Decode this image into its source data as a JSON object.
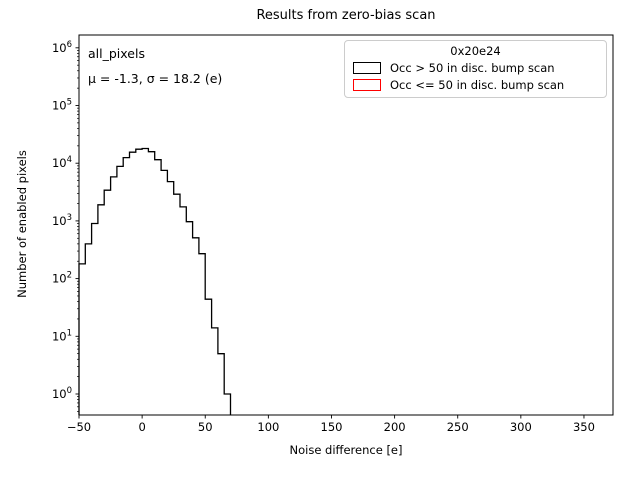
{
  "figure": {
    "title": "Results from zero-bias scan",
    "background_color": "#ffffff",
    "line_color": "#000000"
  },
  "axes": {
    "xlabel": "Noise difference [e]",
    "ylabel": "Number of enabled pixels",
    "x_ticks": [
      -50,
      0,
      50,
      100,
      150,
      200,
      250,
      300,
      350
    ],
    "x_tick_labels": [
      "−50",
      "0",
      "50",
      "100",
      "150",
      "200",
      "250",
      "300",
      "350"
    ],
    "y_tick_exponents": [
      0,
      1,
      2,
      3,
      4,
      5,
      6
    ],
    "y_tick_base": "10"
  },
  "annotation": {
    "line1": "all_pixels",
    "line2": "μ = -1.3, σ = 18.2 (e)"
  },
  "legend": {
    "title": "0x20e24",
    "entries": [
      {
        "label": "Occ > 50 in disc. bump scan",
        "color": "#000000"
      },
      {
        "label": "Occ <= 50 in disc. bump scan",
        "color": "#ff0000"
      }
    ]
  },
  "chart_data": {
    "type": "histogram-step",
    "title": "Results from zero-bias scan",
    "xlabel": "Noise difference [e]",
    "ylabel": "Number of enabled pixels",
    "yscale": "log",
    "xlim": [
      -50,
      373
    ],
    "ylim_exp": [
      -0.364,
      6.222
    ],
    "grid": false,
    "legend_position": "upper right",
    "stats": {
      "mu": -1.3,
      "sigma": 18.2,
      "unit": "e",
      "selection": "all_pixels"
    },
    "series": [
      {
        "name": "Occ > 50 in disc. bump scan",
        "color": "#000000",
        "bin_edges": [
          -50,
          -45,
          -40,
          -35,
          -30,
          -25,
          -20,
          -15,
          -10,
          -5,
          0,
          5,
          10,
          15,
          20,
          25,
          30,
          35,
          40,
          45,
          50,
          55,
          60,
          65,
          70
        ],
        "counts": [
          180,
          400,
          900,
          1900,
          3400,
          5800,
          8800,
          12500,
          15500,
          17500,
          18000,
          15800,
          11500,
          7500,
          4800,
          2900,
          1750,
          970,
          510,
          270,
          44,
          14,
          5,
          1
        ]
      },
      {
        "name": "Occ <= 50 in disc. bump scan",
        "color": "#ff0000",
        "bin_edges": [],
        "counts": []
      }
    ]
  }
}
